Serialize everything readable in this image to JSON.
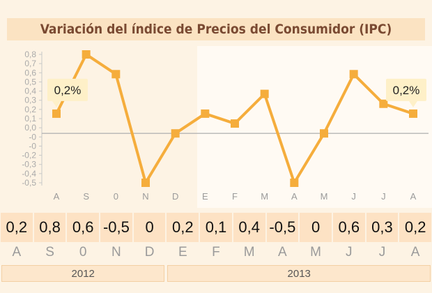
{
  "chart_data": {
    "type": "line",
    "title": "Variación del índice de Precios del Consumidor (IPC)",
    "categories": [
      "A",
      "S",
      "0",
      "N",
      "D",
      "E",
      "F",
      "M",
      "A",
      "M",
      "J",
      "J",
      "A"
    ],
    "values": [
      0.2,
      0.8,
      0.6,
      -0.5,
      0.0,
      0.2,
      0.1,
      0.4,
      -0.5,
      0.0,
      0.6,
      0.3,
      0.2
    ],
    "value_labels": [
      "0,2",
      "0,8",
      "0,6",
      "-0,5",
      "0",
      "0,2",
      "0,1",
      "0,4",
      "-0,5",
      "0",
      "0,6",
      "0,3",
      "0,2"
    ],
    "yticks": [
      "0,8",
      "0,7",
      "0,6",
      "0,5",
      "0,4",
      "0,3",
      "0,2",
      "0,1",
      "0,0",
      "-0",
      "-0",
      "-0,2",
      "-0,3",
      "-0,4",
      "-0,5"
    ],
    "ylim": [
      -0.5,
      0.8
    ],
    "years": [
      {
        "label": "2012",
        "span": [
          0,
          4
        ]
      },
      {
        "label": "2013",
        "span": [
          5,
          12
        ]
      }
    ],
    "callouts": [
      {
        "index": 0,
        "text": "0,2%"
      },
      {
        "index": 12,
        "text": "0,2%"
      }
    ],
    "grid": false,
    "colors": {
      "line": "#f5ad3c",
      "zero_line": "#b5b5b5",
      "callout_bg": "#fef0c8"
    }
  }
}
